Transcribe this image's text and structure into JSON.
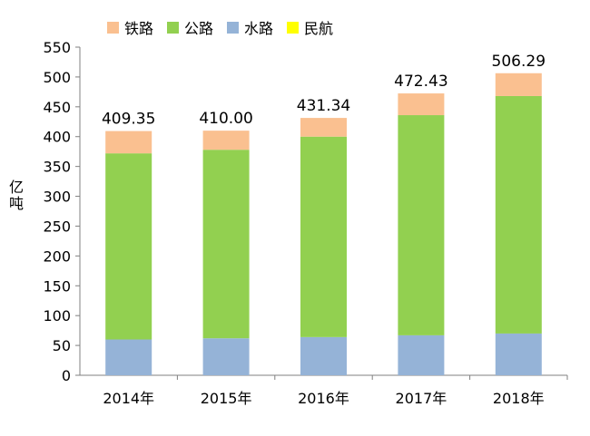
{
  "chart_data": {
    "type": "bar",
    "stacked": true,
    "categories": [
      "2014年",
      "2015年",
      "2016年",
      "2017年",
      "2018年"
    ],
    "series": [
      {
        "name": "铁路",
        "color": "#FAC090",
        "values": [
          37.35,
          32.0,
          31.34,
          36.43,
          38.29
        ]
      },
      {
        "name": "公路",
        "color": "#92D050",
        "values": [
          312,
          316,
          336,
          369,
          398
        ]
      },
      {
        "name": "水路",
        "color": "#95B3D7",
        "values": [
          60,
          62,
          64,
          67,
          70
        ]
      },
      {
        "name": "民航",
        "color": "#FFFF00",
        "values": [
          0,
          0,
          0,
          0,
          0
        ]
      }
    ],
    "totals": [
      "409.35",
      "410.00",
      "431.34",
      "472.43",
      "506.29"
    ],
    "ylabel": "亿吨",
    "ylim": [
      0,
      550
    ],
    "yticks": [
      0,
      50,
      100,
      150,
      200,
      250,
      300,
      350,
      400,
      450,
      500,
      550
    ],
    "grid": false,
    "legend": "top"
  }
}
